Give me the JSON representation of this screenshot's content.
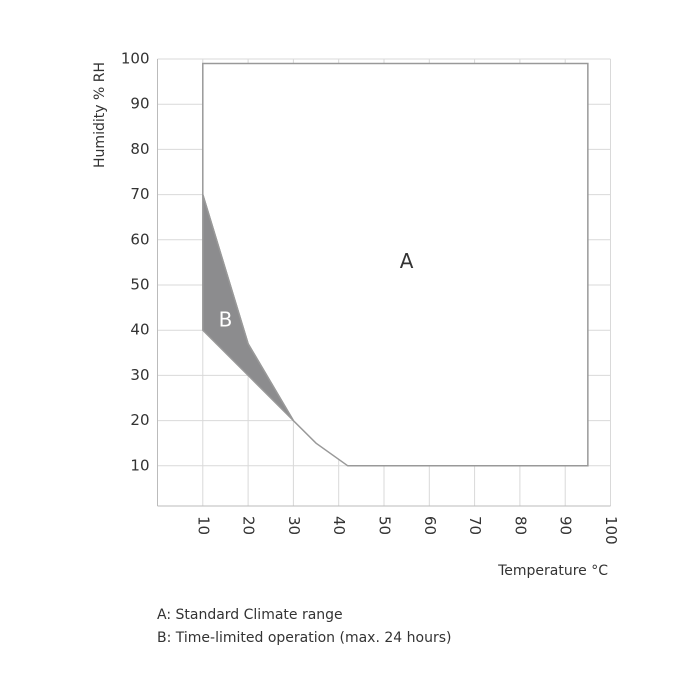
{
  "chart_data": {
    "type": "polygon",
    "x_label": "Temperature °C",
    "y_label": "Humidity % RH",
    "xlim": [
      0,
      100
    ],
    "xticks": [
      10,
      20,
      30,
      40,
      50,
      60,
      70,
      80,
      90,
      100
    ],
    "ylim": [
      0,
      100
    ],
    "yticks": [
      10,
      20,
      30,
      40,
      50,
      60,
      70,
      80,
      90,
      100
    ],
    "grid": true,
    "series": [
      {
        "name": "A",
        "color": "#ffffff",
        "x": [
          10,
          95,
          95,
          42,
          35,
          30,
          20,
          10
        ],
        "values": [
          99,
          99,
          10,
          10,
          15,
          20,
          37,
          70
        ]
      },
      {
        "name": "B",
        "color": "#8c8c8e",
        "x": [
          10,
          20,
          30,
          20,
          10
        ],
        "values": [
          70,
          37,
          20,
          30,
          40
        ]
      }
    ],
    "notes": [
      "A: Standard Climate range",
      "B: Time-limited operation (max. 24 hours)"
    ]
  }
}
